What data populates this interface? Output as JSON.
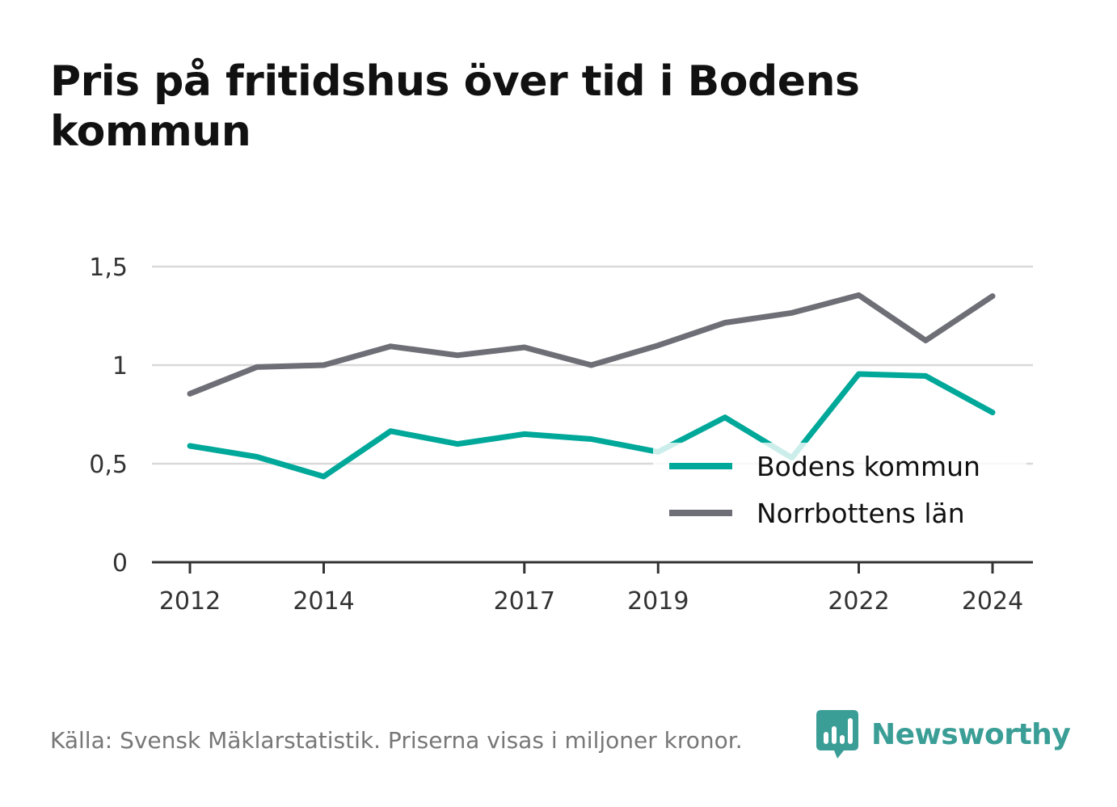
{
  "title": "Pris på fritidshus över tid i Bodens kommun",
  "source": "Källa: Svensk Mäklarstatistik. Priserna visas i miljoner kronor.",
  "brand": {
    "name": "Newsworthy",
    "icon": "bar-chart-speech-bubble-icon",
    "color": "#3a9e96"
  },
  "chart_data": {
    "type": "line",
    "title": "Pris på fritidshus över tid i Bodens kommun",
    "xlabel": "",
    "ylabel": "",
    "x": [
      2012,
      2013,
      2014,
      2015,
      2016,
      2017,
      2018,
      2019,
      2020,
      2021,
      2022,
      2023,
      2024
    ],
    "x_ticks": [
      "2012",
      "2014",
      "2017",
      "2019",
      "2022",
      "2024"
    ],
    "y_ticks": [
      "0",
      "0,5",
      "1",
      "1,5"
    ],
    "ylim": [
      0,
      1.5
    ],
    "grid": true,
    "legend_position": "right",
    "series": [
      {
        "name": "Bodens kommun",
        "color": "#00a89a",
        "values": [
          0.59,
          0.535,
          0.435,
          0.665,
          0.6,
          0.65,
          0.625,
          0.56,
          0.735,
          0.53,
          0.955,
          0.945,
          0.76
        ]
      },
      {
        "name": "Norrbottens län",
        "color": "#6e6e76",
        "values": [
          0.855,
          0.99,
          1.0,
          1.095,
          1.05,
          1.09,
          1.0,
          1.1,
          1.215,
          1.265,
          1.355,
          1.125,
          1.35
        ]
      }
    ]
  }
}
